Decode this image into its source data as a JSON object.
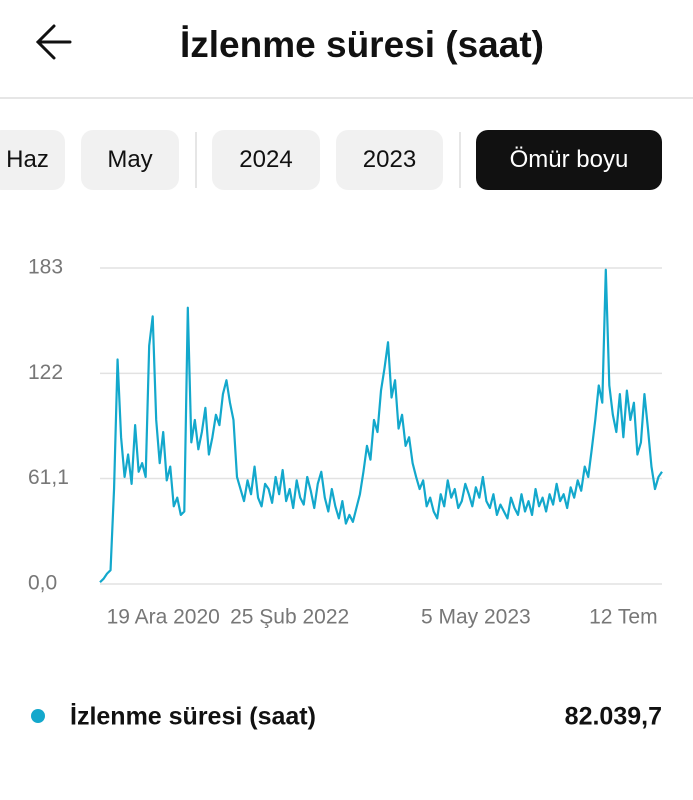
{
  "header": {
    "title": "İzlenme süresi (saat)"
  },
  "tabs": [
    {
      "label": "Haz",
      "active": false
    },
    {
      "label": "May",
      "active": false
    },
    {
      "label": "2024",
      "active": false
    },
    {
      "label": "2023",
      "active": false
    },
    {
      "label": "Ömür boyu",
      "active": true
    }
  ],
  "chart_data": {
    "type": "line",
    "categories": [
      null,
      null,
      null,
      null,
      null,
      null,
      null,
      null,
      null,
      null,
      null,
      null,
      null,
      null,
      null,
      null,
      null,
      null,
      "19 Ara 2020",
      null,
      null,
      null,
      null,
      null,
      null,
      null,
      null,
      null,
      null,
      null,
      null,
      null,
      null,
      null,
      null,
      null,
      null,
      null,
      null,
      null,
      null,
      null,
      null,
      null,
      null,
      null,
      null,
      null,
      null,
      null,
      null,
      null,
      null,
      null,
      "25 Şub 2022",
      null,
      null,
      null,
      null,
      null,
      null,
      null,
      null,
      null,
      null,
      null,
      null,
      null,
      null,
      null,
      null,
      null,
      null,
      null,
      null,
      null,
      null,
      null,
      null,
      null,
      null,
      null,
      null,
      null,
      null,
      null,
      null,
      null,
      null,
      null,
      null,
      null,
      null,
      null,
      null,
      null,
      null,
      null,
      null,
      null,
      null,
      null,
      null,
      null,
      null,
      null,
      null,
      "5 May 2023",
      null,
      null,
      null,
      null,
      null,
      null,
      null,
      null,
      null,
      null,
      null,
      null,
      null,
      null,
      null,
      null,
      null,
      null,
      null,
      null,
      null,
      null,
      null,
      null,
      null,
      null,
      null,
      null,
      null,
      null,
      null,
      null,
      null,
      null,
      null,
      null,
      null,
      null,
      null,
      null,
      null,
      "12 Tem",
      null,
      null,
      null,
      null,
      null,
      null,
      null,
      null,
      null,
      null,
      null
    ],
    "series": [
      {
        "name": "İzlenme süresi (saat)",
        "color": "#13a8cc",
        "values": [
          1,
          3,
          6,
          8,
          55,
          130,
          85,
          62,
          75,
          58,
          92,
          65,
          70,
          62,
          138,
          155,
          95,
          70,
          88,
          60,
          68,
          45,
          50,
          40,
          42,
          160,
          82,
          95,
          78,
          88,
          102,
          75,
          85,
          98,
          92,
          110,
          118,
          105,
          95,
          62,
          55,
          48,
          60,
          52,
          68,
          50,
          45,
          58,
          55,
          47,
          62,
          52,
          66,
          48,
          55,
          44,
          60,
          50,
          46,
          62,
          54,
          44,
          58,
          65,
          50,
          42,
          55,
          45,
          38,
          48,
          35,
          40,
          36,
          44,
          52,
          65,
          80,
          72,
          95,
          88,
          112,
          125,
          140,
          108,
          118,
          90,
          98,
          80,
          85,
          70,
          62,
          55,
          60,
          45,
          50,
          42,
          38,
          52,
          45,
          60,
          50,
          55,
          44,
          48,
          58,
          52,
          45,
          56,
          50,
          62,
          48,
          44,
          52,
          40,
          46,
          42,
          38,
          50,
          44,
          40,
          52,
          42,
          48,
          40,
          55,
          45,
          50,
          42,
          52,
          46,
          58,
          48,
          52,
          44,
          56,
          50,
          60,
          54,
          68,
          62,
          78,
          95,
          115,
          105,
          182,
          115,
          98,
          88,
          110,
          85,
          112,
          95,
          105,
          75,
          82,
          110,
          90,
          68,
          55,
          62,
          65
        ]
      }
    ],
    "ylim": [
      0,
      183
    ],
    "yticks": [
      {
        "value": 0,
        "label": "0,0"
      },
      {
        "value": 61.1,
        "label": "61,1"
      },
      122,
      183
    ],
    "grid": true
  },
  "summary": {
    "total": "82.039,7"
  }
}
